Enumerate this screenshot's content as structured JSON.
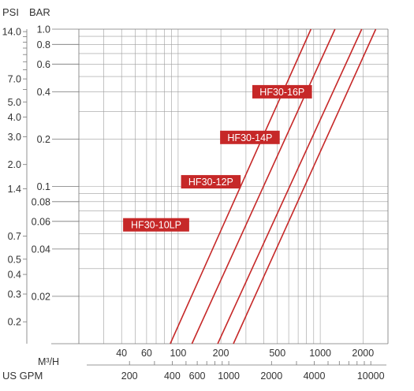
{
  "chart_data": {
    "type": "line",
    "title": "",
    "scale": {
      "x": "log",
      "y": "log"
    },
    "grid": true,
    "axes": {
      "left_outer": {
        "header": "PSI",
        "ticks": [
          {
            "label": "14.0",
            "value": 14.0
          },
          {
            "label": "7.0",
            "value": 7.0
          },
          {
            "label": "5.0",
            "value": 5.0
          },
          {
            "label": "4.0",
            "value": 4.0
          },
          {
            "label": "3.0",
            "value": 3.0
          },
          {
            "label": "2.0",
            "value": 2.0
          },
          {
            "label": "1.4",
            "value": 1.4
          },
          {
            "label": "0.7",
            "value": 0.7
          },
          {
            "label": "0.5",
            "value": 0.5
          },
          {
            "label": "0.4",
            "value": 0.4
          },
          {
            "label": "0.3",
            "value": 0.3
          },
          {
            "label": "0.2",
            "value": 0.2
          }
        ]
      },
      "left_inner": {
        "header": "BAR",
        "ylim": [
          0.01,
          1.0
        ],
        "ticks": [
          {
            "label": "1.0",
            "value": 1.0
          },
          {
            "label": "0.8",
            "value": 0.8
          },
          {
            "label": "0.6",
            "value": 0.6
          },
          {
            "label": "0.4",
            "value": 0.4
          },
          {
            "label": "0.2",
            "value": 0.2
          },
          {
            "label": "0.1",
            "value": 0.1
          },
          {
            "label": "0.08",
            "value": 0.08
          },
          {
            "label": "0.06",
            "value": 0.06
          },
          {
            "label": "0.04",
            "value": 0.04
          },
          {
            "label": "0.02",
            "value": 0.02
          }
        ]
      },
      "bottom_m3h": {
        "label": "M³/H",
        "xlim": [
          20,
          3000
        ],
        "ticks": [
          {
            "label": "40",
            "value": 40
          },
          {
            "label": "60",
            "value": 60
          },
          {
            "label": "100",
            "value": 100
          },
          {
            "label": "200",
            "value": 200
          },
          {
            "label": "500",
            "value": 500
          },
          {
            "label": "1000",
            "value": 1000
          },
          {
            "label": "2000",
            "value": 2000
          }
        ]
      },
      "bottom_gpm": {
        "label": "US GPM",
        "ticks": [
          {
            "label": "200",
            "value": 200
          },
          {
            "label": "400",
            "value": 400
          },
          {
            "label": "600",
            "value": 600
          },
          {
            "label": "1000",
            "value": 1000
          },
          {
            "label": "2000",
            "value": 2000
          },
          {
            "label": "4000",
            "value": 4000
          },
          {
            "label": "10000",
            "value": 10000
          }
        ]
      }
    },
    "series": [
      {
        "name": "HF30-10LP",
        "color": "#c62828",
        "points": [
          [
            88,
            0.01
          ],
          [
            860,
            1.0
          ]
        ]
      },
      {
        "name": "HF30-12P",
        "color": "#c62828",
        "points": [
          [
            125,
            0.01
          ],
          [
            1270,
            1.0
          ]
        ]
      },
      {
        "name": "HF30-14P",
        "color": "#c62828",
        "points": [
          [
            190,
            0.01
          ],
          [
            1960,
            1.0
          ]
        ]
      },
      {
        "name": "HF30-16P",
        "color": "#c62828",
        "points": [
          [
            245,
            0.01
          ],
          [
            2460,
            1.0
          ]
        ]
      }
    ],
    "series_labels": [
      {
        "text": "HF30-10LP",
        "series": "HF30-10LP",
        "x": 70,
        "y": 0.057
      },
      {
        "text": "HF30-12P",
        "series": "HF30-12P",
        "x": 170,
        "y": 0.107
      },
      {
        "text": "HF30-14P",
        "series": "HF30-14P",
        "x": 320,
        "y": 0.205
      },
      {
        "text": "HF30-16P",
        "series": "HF30-16P",
        "x": 540,
        "y": 0.4
      }
    ]
  }
}
